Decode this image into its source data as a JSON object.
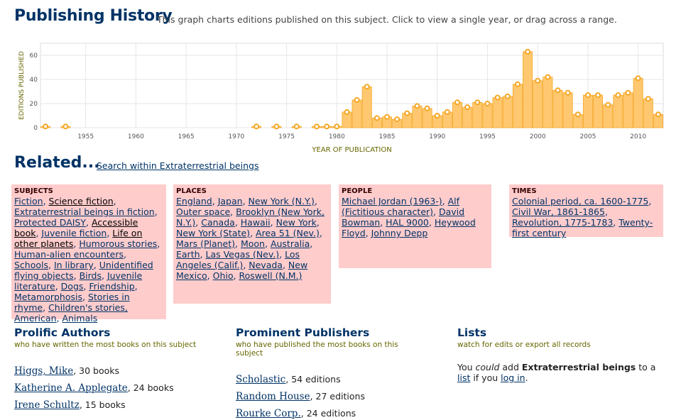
{
  "header": {
    "title": "Publishing History",
    "description": "This graph charts editions published on this subject. Click to view a single year, or drag across a range."
  },
  "chart_data": {
    "type": "bar",
    "ylabel": "EDITIONS PUBLISHED",
    "xlabel": "YEAR OF PUBLICATION",
    "ylim": [
      0,
      70
    ],
    "y_ticks": [
      0,
      20,
      40,
      60
    ],
    "x_ticks": [
      1955,
      1960,
      1965,
      1970,
      1975,
      1980,
      1985,
      1990,
      1995,
      2000,
      2005,
      2010
    ],
    "xlim": [
      1950.5,
      2012.5
    ],
    "grid": true,
    "bar_color": "#ffc870",
    "line_color": "#f5a623",
    "x": [
      1951,
      1953,
      1972,
      1974,
      1976,
      1978,
      1979,
      1980,
      1981,
      1982,
      1983,
      1984,
      1985,
      1986,
      1987,
      1988,
      1989,
      1990,
      1991,
      1992,
      1993,
      1994,
      1995,
      1996,
      1997,
      1998,
      1999,
      2000,
      2001,
      2002,
      2003,
      2004,
      2005,
      2006,
      2007,
      2008,
      2009,
      2010,
      2011,
      2012
    ],
    "values": [
      1,
      1,
      1,
      1,
      1,
      1,
      1,
      1,
      13,
      23,
      34,
      8,
      9,
      7,
      12,
      18,
      16,
      10,
      13,
      21,
      17,
      21,
      20,
      25,
      26,
      36,
      63,
      39,
      42,
      31,
      29,
      11,
      27,
      27,
      19,
      27,
      29,
      41,
      24,
      11
    ]
  },
  "related": {
    "title": "Related...",
    "search_link": "Search within Extraterrestrial beings",
    "subjects": {
      "heading": "SUBJECTS",
      "items": [
        "Fiction",
        "Science fiction",
        "Extraterrestrial beings in fiction",
        "Protected DAISY",
        "Accessible book",
        "Juvenile fiction",
        "Life on other planets",
        "Humorous stories",
        "Human-alien encounters",
        "Schools",
        "In library",
        "Unidentified flying objects",
        "Birds",
        "Juvenile literature",
        "Dogs",
        "Friendship",
        "Metamorphosis",
        "Stories in rhyme",
        "Children's stories, American",
        "Animals"
      ]
    },
    "places": {
      "heading": "PLACES",
      "items": [
        "England",
        "Japan",
        "New York (N.Y.)",
        "Outer space",
        "Brooklyn (New York, N.Y.)",
        "Canada",
        "Hawaii",
        "New York",
        "New York (State)",
        "Area 51 (Nev.)",
        "Mars (Planet)",
        "Moon",
        "Australia",
        "Earth",
        "Las Vegas (Nev.)",
        "Los Angeles (Calif.)",
        "Nevada",
        "New Mexico",
        "Ohio",
        "Roswell (N.M.)"
      ]
    },
    "people": {
      "heading": "PEOPLE",
      "items": [
        "Michael Jordan (1963-)",
        "Alf (Fictitious character)",
        "David Bowman",
        "HAL 9000",
        "Heywood Floyd",
        "Johnny Depp"
      ]
    },
    "times": {
      "heading": "TIMES",
      "items": [
        "Colonial period, ca. 1600-1775",
        "Civil War, 1861-1865",
        "Revolution, 1775-1783",
        "Twenty-first century"
      ]
    }
  },
  "authors": {
    "title": "Prolific Authors",
    "subtitle": "who have written the most books on this subject",
    "rows": [
      {
        "name": "Higgs, Mike",
        "count": "30 books"
      },
      {
        "name": "Katherine A. Applegate",
        "count": "24 books"
      },
      {
        "name": "Irene Schultz",
        "count": "15 books"
      }
    ]
  },
  "publishers": {
    "title": "Prominent Publishers",
    "subtitle": "who have published the most books on this subject",
    "rows": [
      {
        "name": "Scholastic",
        "count": "54 editions"
      },
      {
        "name": "Random House",
        "count": "27 editions"
      },
      {
        "name": "Rourke Corp.",
        "count": "24 editions"
      }
    ]
  },
  "lists": {
    "title": "Lists",
    "subtitle": "watch for edits or export all records",
    "text_1": "You ",
    "text_could": "could",
    "text_2": " add ",
    "subject": "Extraterrestrial beings",
    "text_3": " to a ",
    "list_link": "list",
    "text_4": " if you ",
    "login_link": "log in",
    "text_5": "."
  }
}
